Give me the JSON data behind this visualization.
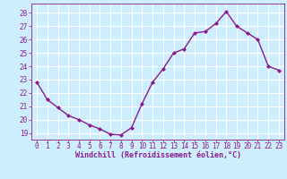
{
  "x_values": [
    0,
    1,
    2,
    3,
    4,
    5,
    6,
    7,
    8,
    9,
    10,
    11,
    12,
    13,
    14,
    15,
    16,
    17,
    18,
    19,
    20,
    21,
    22,
    23
  ],
  "y_values": [
    22.8,
    21.5,
    20.9,
    20.3,
    20.0,
    19.6,
    19.3,
    18.9,
    18.85,
    19.4,
    21.2,
    22.8,
    23.8,
    25.0,
    25.3,
    26.5,
    26.6,
    27.2,
    28.1,
    27.0,
    26.5,
    26.0,
    24.0,
    23.7
  ],
  "line_color": "#8b1a8b",
  "marker": "D",
  "marker_size": 2.0,
  "line_width": 1.0,
  "xlabel": "Windchill (Refroidissement éolien,°C)",
  "xlim": [
    -0.5,
    23.5
  ],
  "ylim": [
    18.5,
    28.7
  ],
  "yticks": [
    19,
    20,
    21,
    22,
    23,
    24,
    25,
    26,
    27,
    28
  ],
  "xticks": [
    0,
    1,
    2,
    3,
    4,
    5,
    6,
    7,
    8,
    9,
    10,
    11,
    12,
    13,
    14,
    15,
    16,
    17,
    18,
    19,
    20,
    21,
    22,
    23
  ],
  "background_color": "#cceeff",
  "grid_color": "#ffffff",
  "tick_color": "#8b1a8b",
  "label_color": "#8b1a8b",
  "tick_fontsize": 5.5,
  "xlabel_fontsize": 6.0
}
